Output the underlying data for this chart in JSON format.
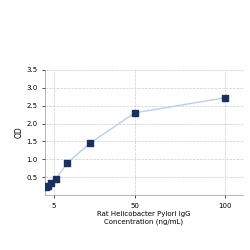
{
  "x": [
    0.781,
    1.563,
    3.125,
    6.25,
    12.5,
    25,
    50,
    100
  ],
  "y": [
    0.221,
    0.265,
    0.346,
    0.46,
    0.9,
    1.45,
    2.3,
    2.72
  ],
  "line_color": "#b8d0e8",
  "marker_color": "#1a3060",
  "marker_size": 18,
  "xlabel_line1": "Rat Helicobacter Pylori IgG",
  "xlabel_line2": "Concentration (ng/mL)",
  "ylabel": "OD",
  "xlim": [
    0,
    110
  ],
  "ylim": [
    0,
    3.5
  ],
  "yticks": [
    0.5,
    1.0,
    1.5,
    2.0,
    2.5,
    3.0,
    3.5
  ],
  "xticks": [
    5,
    50,
    100
  ],
  "grid_color": "#cccccc",
  "bg_color": "#ffffff",
  "label_fontsize": 5.0,
  "tick_fontsize": 5.0,
  "ylabel_fontsize": 5.5
}
